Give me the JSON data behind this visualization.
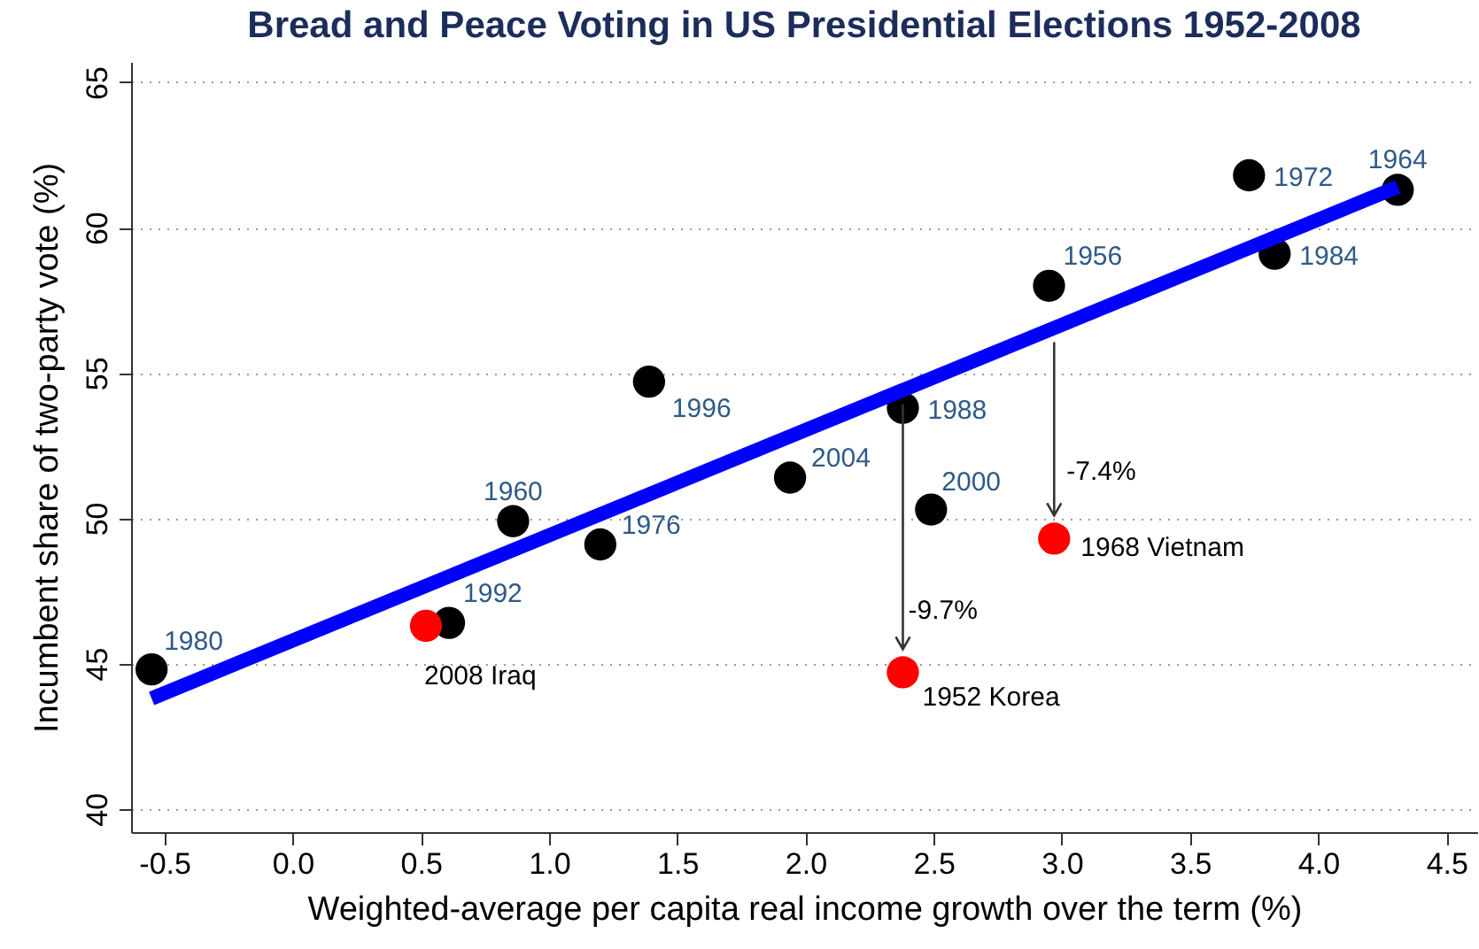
{
  "chart_data": {
    "type": "scatter",
    "title": "Bread and Peace Voting in US Presidential Elections 1952-2008",
    "xlabel": "Weighted-average per capita real income growth over the term (%)",
    "ylabel": "Incumbent share of two-party vote (%)",
    "xlim": [
      -0.63,
      4.62
    ],
    "ylim": [
      39.2,
      65.7
    ],
    "xticks": [
      -0.5,
      {
        "value": 0,
        "label": "0.0"
      },
      0.5,
      {
        "value": 1,
        "label": "1.0"
      },
      1.5,
      {
        "value": 2,
        "label": "2.0"
      },
      2.5,
      {
        "value": 3,
        "label": "3.0"
      },
      3.5,
      {
        "value": 4,
        "label": "4.0"
      },
      4.5
    ],
    "yticks": [
      40,
      45,
      50,
      55,
      60,
      65
    ],
    "grid": "y",
    "marker": "circle",
    "series": [
      {
        "type": "line",
        "marker": "none",
        "color": "#0000ff",
        "x": [
          -0.55,
          4.31
        ],
        "values": [
          43.8,
          61.4
        ]
      },
      {
        "color": "#000000",
        "x": [
          -0.55,
          0.61,
          0.86,
          1.2,
          1.39,
          1.94,
          2.38,
          2.49,
          2.95,
          3.73,
          3.83,
          4.31
        ],
        "values": [
          44.8,
          46.4,
          49.9,
          49.1,
          54.7,
          51.4,
          53.8,
          50.3,
          58.0,
          61.8,
          59.1,
          61.3
        ]
      },
      {
        "color": "#ff0000",
        "x": [
          0.52,
          2.38,
          2.97
        ],
        "values": [
          46.3,
          44.7,
          49.3
        ]
      }
    ],
    "annotations": [
      {
        "text": "1980",
        "x": -0.55,
        "y": 44.8
      },
      {
        "text": "1992",
        "x": 0.61,
        "y": 46.4
      },
      {
        "text": "1960",
        "x": 0.86,
        "y": 49.9
      },
      {
        "text": "1976",
        "x": 1.2,
        "y": 49.1
      },
      {
        "text": "1996",
        "x": 1.39,
        "y": 54.7
      },
      {
        "text": "2004",
        "x": 1.94,
        "y": 51.4
      },
      {
        "text": "1988",
        "x": 2.38,
        "y": 53.8
      },
      {
        "text": "2000",
        "x": 2.49,
        "y": 50.3
      },
      {
        "text": "1956",
        "x": 2.95,
        "y": 58.0
      },
      {
        "text": "1972",
        "x": 3.73,
        "y": 61.8
      },
      {
        "text": "1984",
        "x": 3.83,
        "y": 59.1
      },
      {
        "text": "1964",
        "x": 4.31,
        "y": 61.3
      },
      {
        "text": "2008 Iraq",
        "x": 0.52,
        "y": 46.3
      },
      {
        "text": "1952 Korea",
        "x": 2.38,
        "y": 44.7
      },
      {
        "text": "1968 Vietnam",
        "x": 2.97,
        "y": 49.3
      },
      {
        "text": "-9.7%",
        "x": 2.38,
        "y": 44.7
      },
      {
        "text": "-7.4%",
        "x": 2.97,
        "y": 49.3
      }
    ]
  }
}
